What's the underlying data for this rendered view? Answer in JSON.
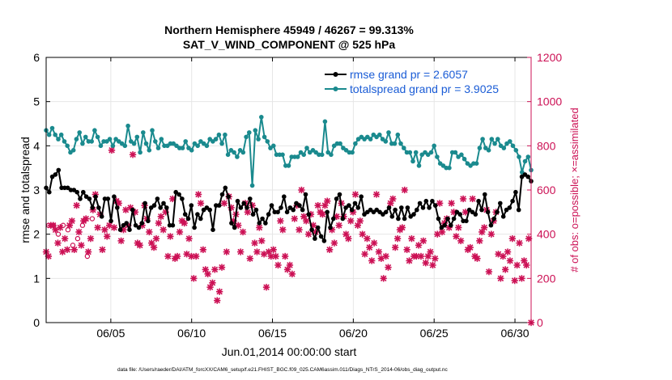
{
  "chart_data": {
    "type": "line",
    "title_line1": "Northern Hemisphere 45949 / 46267 = 99.313%",
    "title_line2": "SAT_V_WIND_COMPONENT @ 525 hPa",
    "xlabel": "Jun.01,2014 00:00:00 start",
    "ylabel_left": "rmse and totalspread",
    "ylabel_right": "# of obs: o=possible; ×=assimilated",
    "xlim": [
      1,
      31
    ],
    "ylim_left": [
      0,
      6
    ],
    "ylim_right": [
      0,
      1200
    ],
    "x_ticks": [
      {
        "value": 5,
        "label": "06/05"
      },
      {
        "value": 10,
        "label": "06/10"
      },
      {
        "value": 15,
        "label": "06/15"
      },
      {
        "value": 20,
        "label": "06/20"
      },
      {
        "value": 25,
        "label": "06/25"
      },
      {
        "value": 30,
        "label": "06/30"
      }
    ],
    "y_ticks_left": [
      "0",
      "1",
      "2",
      "3",
      "4",
      "5",
      "6"
    ],
    "y_ticks_right": [
      "0",
      "200",
      "400",
      "600",
      "800",
      "1000",
      "1200"
    ],
    "legend": [
      {
        "label": "rmse grand pr = 2.6057",
        "color": "#000000"
      },
      {
        "label": "totalspread grand pr = 3.9025",
        "color": "#1a8a8e"
      }
    ],
    "footer": "data file: /Users/raeder/DAI/ATM_forcXX/CAM6_setup/f.e21.FHIST_BGC.f09_025.CAM6assim.011/Diags_NTrS_2014-06/obs_diag_output.nc",
    "series": [
      {
        "name": "rmse",
        "color": "#000000",
        "values": [
          3.05,
          2.95,
          3.3,
          3.35,
          3.45,
          3.05,
          3.05,
          3.05,
          3.0,
          3.0,
          2.95,
          2.8,
          2.95,
          2.85,
          2.8,
          2.6,
          2.85,
          2.6,
          2.4,
          2.8,
          2.8,
          2.3,
          2.85,
          2.6,
          2.1,
          2.2,
          2.25,
          2.1,
          2.55,
          2.2,
          2.15,
          2.25,
          2.7,
          2.3,
          2.6,
          2.65,
          2.8,
          2.6,
          2.7,
          2.6,
          2.2,
          2.2,
          2.95,
          2.9,
          2.8,
          2.45,
          2.35,
          2.65,
          2.15,
          2.45,
          2.35,
          2.55,
          2.6,
          2.55,
          2.1,
          2.65,
          2.65,
          2.9,
          3.05,
          2.85,
          2.25,
          2.15,
          2.75,
          2.6,
          2.7,
          2.6,
          2.8,
          2.45,
          2.55,
          2.25,
          2.35,
          2.25,
          2.45,
          2.65,
          2.5,
          2.5,
          2.6,
          2.85,
          2.5,
          2.6,
          2.55,
          2.7,
          2.65,
          2.55,
          2.9,
          2.45,
          2.1,
          1.9,
          2.15,
          1.95,
          1.85,
          2.5,
          2.15,
          2.35,
          2.8,
          2.9,
          2.35,
          2.6,
          2.65,
          2.55,
          2.7,
          2.6,
          2.85,
          2.45,
          2.5,
          2.55,
          2.5,
          2.55,
          2.5,
          2.45,
          2.5,
          2.6,
          2.4,
          2.55,
          2.35,
          2.6,
          2.35,
          2.6,
          2.4,
          2.45,
          2.55,
          2.7,
          2.6,
          2.75,
          2.6,
          2.75,
          2.65,
          2.35,
          2.15,
          2.2,
          2.35,
          2.2,
          2.35,
          2.5,
          2.45,
          2.3,
          2.3,
          2.55,
          2.5,
          2.45,
          2.75,
          2.55,
          2.9,
          2.5,
          2.2,
          2.35,
          2.5,
          2.7,
          2.4,
          2.55,
          2.6,
          2.75,
          2.95,
          2.55,
          3.3,
          3.35,
          3.3,
          3.2
        ]
      },
      {
        "name": "totalspread",
        "color": "#1a8a8e",
        "values": [
          4.35,
          4.25,
          4.4,
          4.25,
          4.15,
          4.25,
          4.1,
          4.0,
          3.85,
          3.9,
          4.15,
          4.3,
          4.05,
          4.2,
          4.1,
          4.1,
          4.35,
          4.2,
          4.0,
          4.1,
          4.1,
          4.15,
          4.0,
          4.15,
          4.1,
          4.05,
          4.0,
          4.45,
          4.1,
          4.05,
          4.2,
          3.85,
          4.3,
          4.05,
          3.9,
          4.35,
          4.1,
          3.95,
          4.15,
          4.0,
          4.0,
          4.05,
          4.05,
          4.0,
          3.95,
          3.95,
          4.1,
          3.95,
          3.9,
          4.05,
          4.0,
          4.1,
          4.05,
          4.0,
          4.15,
          4.1,
          4.15,
          4.25,
          4.05,
          4.25,
          3.8,
          3.9,
          3.85,
          3.75,
          3.9,
          3.85,
          4.2,
          4.3,
          3.1,
          4.35,
          4.15,
          4.65,
          4.2,
          4.1,
          3.95,
          4.0,
          3.8,
          3.8,
          3.8,
          3.55,
          3.55,
          3.75,
          3.75,
          3.75,
          3.85,
          3.8,
          3.95,
          3.85,
          3.9,
          3.85,
          3.8,
          3.8,
          4.55,
          3.85,
          3.8,
          4.0,
          4.05,
          4.05,
          3.95,
          3.9,
          3.85,
          3.85,
          4.05,
          4.15,
          4.2,
          4.15,
          4.2,
          4.15,
          4.25,
          4.2,
          4.25,
          4.15,
          4.1,
          4.3,
          4.05,
          4.05,
          4.25,
          4.05,
          3.95,
          3.85,
          3.85,
          3.65,
          3.85,
          3.55,
          3.8,
          3.85,
          3.8,
          3.85,
          4.0,
          3.75,
          3.6,
          3.55,
          3.5,
          3.5,
          3.85,
          3.85,
          3.75,
          3.8,
          3.7,
          3.6,
          3.55,
          3.6,
          3.6,
          3.95,
          4.15,
          3.95,
          3.9,
          4.15,
          4.05,
          4.15,
          4.0,
          3.95,
          4.05,
          4.1,
          4.0,
          3.9,
          3.75,
          3.4,
          3.65,
          3.75,
          3.45
        ]
      }
    ],
    "obs_assimilated": {
      "color": "#cc1155",
      "values": [
        320,
        300,
        440,
        440,
        420,
        360,
        430,
        320,
        380,
        330,
        440,
        460,
        330,
        530,
        410,
        350,
        460,
        470,
        320,
        380,
        510,
        580,
        430,
        490,
        330,
        420,
        390,
        440,
        780,
        430,
        550,
        540,
        370,
        420,
        510,
        440,
        520,
        760,
        500,
        360,
        350,
        440,
        530,
        470,
        410,
        360,
        340,
        380,
        450,
        480,
        420,
        500,
        300,
        390,
        560,
        290,
        300,
        410,
        460,
        450,
        310,
        380,
        300,
        200,
        300,
        580,
        540,
        330,
        240,
        220,
        160,
        180,
        240,
        100,
        140,
        250,
        540,
        320,
        570,
        520,
        460,
        490,
        440,
        320,
        410,
        540,
        500,
        290,
        530,
        360,
        320,
        430,
        370,
        310,
        160,
        320,
        300,
        330,
        300,
        260,
        460,
        420,
        300,
        240,
        260,
        220,
        470,
        530,
        420,
        600,
        480,
        460,
        400,
        490,
        440,
        410,
        530,
        500,
        490,
        530,
        550,
        330,
        420,
        360,
        480,
        440,
        540,
        480,
        400,
        380,
        460,
        500,
        580,
        440,
        460,
        400,
        310,
        380,
        340,
        280,
        360,
        580,
        320,
        290,
        200,
        300,
        250,
        540,
        560,
        340,
        380,
        420,
        430,
        600,
        330,
        280,
        380,
        300,
        300,
        350,
        300,
        370,
        270,
        300,
        320,
        260,
        290,
        400,
        540,
        410,
        450,
        470,
        430,
        540,
        500,
        390,
        430,
        370,
        560,
        500,
        330,
        340,
        560,
        300,
        290,
        370,
        410,
        430,
        510,
        230,
        400,
        460,
        500,
        310,
        200,
        300,
        240,
        320,
        280,
        380,
        190,
        260,
        360,
        200,
        280,
        260,
        380,
        0
      ]
    },
    "obs_possible": {
      "color": "#cc1155",
      "values": [
        440,
        440,
        400,
        440,
        420,
        350,
        380,
        440,
        300,
        470
      ]
    }
  }
}
